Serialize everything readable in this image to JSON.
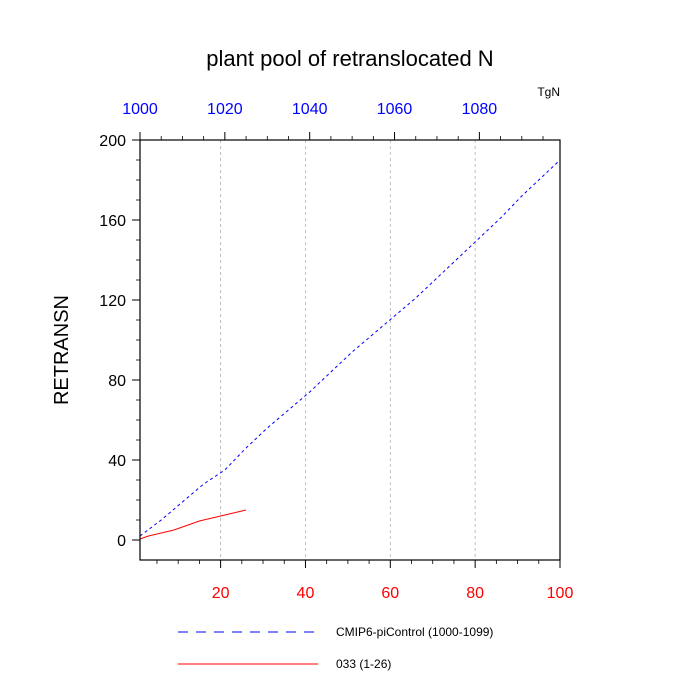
{
  "chart_data": {
    "type": "line",
    "title": "plant pool of retranslocated N",
    "ylabel": "RETRANSN",
    "units": "TgN",
    "xlim": [
      1,
      100
    ],
    "ylim": [
      -10,
      200
    ],
    "y_ticks": [
      0,
      40,
      80,
      120,
      160,
      200
    ],
    "x_ticks": [
      20,
      40,
      60,
      80,
      100
    ],
    "top_x_ticks": [
      1000,
      1020,
      1040,
      1060,
      1080
    ],
    "top_xlim": [
      1000,
      1099
    ],
    "grid": "vertical dashed at bottom x ticks",
    "colors": {
      "bottom_axis": "#ff0000",
      "top_axis": "#0000ff",
      "series_cmip6": "#0000ff",
      "series_033": "#ff0000",
      "grid": "#b0b0b0"
    },
    "series": [
      {
        "name": "CMIP6-piControl (1000-1099)",
        "axis": "top",
        "style": "dashed",
        "x": [
          1000,
          1005,
          1010,
          1015,
          1020,
          1025,
          1030,
          1035,
          1040,
          1045,
          1050,
          1055,
          1060,
          1065,
          1070,
          1075,
          1080,
          1085,
          1090,
          1095,
          1099
        ],
        "y": [
          2,
          10,
          19,
          28,
          35,
          46,
          56,
          65,
          74,
          84,
          94,
          103,
          112,
          121,
          131,
          141,
          151,
          161,
          172,
          182,
          190
        ]
      },
      {
        "name": "033 (1-26)",
        "axis": "bottom",
        "style": "solid",
        "x": [
          1,
          3,
          5,
          7,
          9,
          11,
          13,
          15,
          17,
          19,
          21,
          23,
          25,
          26
        ],
        "y": [
          0.5,
          2,
          3,
          4,
          5,
          6.5,
          8,
          9.5,
          10.5,
          11.5,
          12.5,
          13.5,
          14.5,
          15
        ]
      }
    ],
    "legend": {
      "placement": "bottom",
      "entries": [
        "CMIP6-piControl (1000-1099)",
        "033 (1-26)"
      ]
    }
  }
}
